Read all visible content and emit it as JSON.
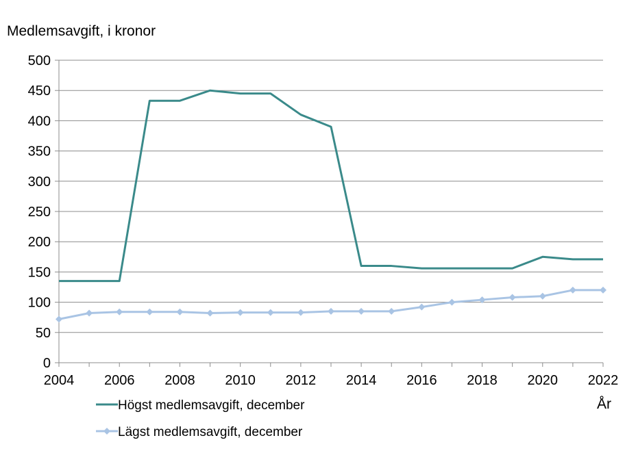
{
  "chart_data": {
    "type": "line",
    "ylabel": "Medlemsavgift, i kronor",
    "xlabel": "År",
    "x": [
      2004,
      2005,
      2006,
      2007,
      2008,
      2009,
      2010,
      2011,
      2012,
      2013,
      2014,
      2015,
      2016,
      2017,
      2018,
      2019,
      2020,
      2021,
      2022
    ],
    "x_ticks": [
      2004,
      2006,
      2008,
      2010,
      2012,
      2014,
      2016,
      2018,
      2020,
      2022
    ],
    "y_ticks": [
      0,
      50,
      100,
      150,
      200,
      250,
      300,
      350,
      400,
      450,
      500
    ],
    "xlim": [
      2004,
      2022
    ],
    "ylim": [
      0,
      500
    ],
    "grid": "horizontal",
    "legend_position": "bottom-left",
    "series": [
      {
        "name": "Högst medlemsavgift, december",
        "color": "#3a8a8a",
        "marker": "none",
        "values": [
          135,
          135,
          135,
          433,
          433,
          450,
          445,
          445,
          410,
          390,
          160,
          160,
          156,
          156,
          156,
          156,
          175,
          171,
          171
        ]
      },
      {
        "name": "Lägst medlemsavgift, december",
        "color": "#a9c4e4",
        "marker": "diamond",
        "values": [
          72,
          82,
          84,
          84,
          84,
          82,
          83,
          83,
          83,
          85,
          85,
          85,
          92,
          100,
          104,
          108,
          110,
          120,
          120
        ]
      }
    ]
  }
}
